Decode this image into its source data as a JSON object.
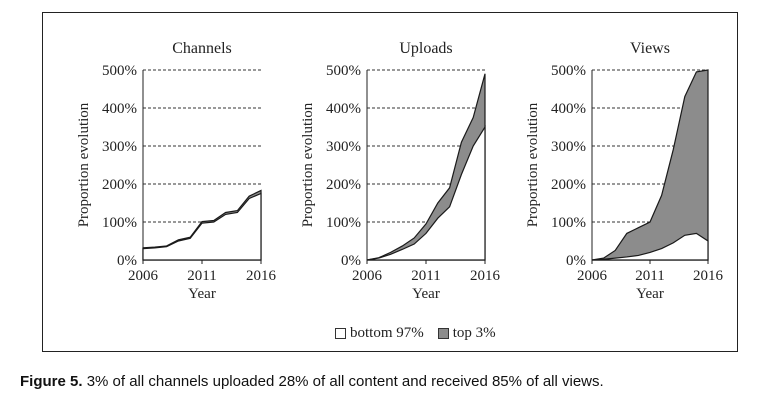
{
  "caption": {
    "label": "Figure 5.",
    "text": "3% of all channels uploaded 28% of all content and received 85% of all views."
  },
  "legend": {
    "bottom": "bottom 97%",
    "top": "top 3%"
  },
  "colors": {
    "top_fill": "#8c8c8c",
    "bottom_fill": "#ffffff",
    "line": "#1a1a1a",
    "grid": "#333333"
  },
  "chart_data": [
    {
      "type": "area",
      "title": "Channels",
      "xlabel": "Year",
      "ylabel": "Proportion evolution",
      "x": [
        2006,
        2007,
        2008,
        2009,
        2010,
        2011,
        2012,
        2013,
        2014,
        2015,
        2016
      ],
      "xticks": [
        2006,
        2011,
        2016
      ],
      "yticks": [
        "0%",
        "100%",
        "200%",
        "300%",
        "400%",
        "500%"
      ],
      "ylim": [
        0,
        500
      ],
      "series": [
        {
          "name": "bottom 97%",
          "values": [
            30,
            32,
            35,
            50,
            57,
            97,
            100,
            120,
            125,
            162,
            175
          ]
        },
        {
          "name": "top 3%",
          "values": [
            32,
            34,
            37,
            53,
            60,
            101,
            104,
            125,
            130,
            168,
            183
          ]
        }
      ]
    },
    {
      "type": "area",
      "title": "Uploads",
      "xlabel": "Year",
      "ylabel": "Proportion evolution",
      "x": [
        2006,
        2007,
        2008,
        2009,
        2010,
        2011,
        2012,
        2013,
        2014,
        2015,
        2016
      ],
      "xticks": [
        2006,
        2011,
        2016
      ],
      "yticks": [
        "0%",
        "100%",
        "200%",
        "300%",
        "400%",
        "500%"
      ],
      "ylim": [
        0,
        500
      ],
      "series": [
        {
          "name": "bottom 97%",
          "values": [
            0,
            5,
            15,
            28,
            42,
            70,
            110,
            140,
            225,
            300,
            350
          ]
        },
        {
          "name": "top 3%",
          "values": [
            0,
            6,
            20,
            37,
            58,
            95,
            150,
            190,
            310,
            375,
            490
          ]
        }
      ]
    },
    {
      "type": "area",
      "title": "Views",
      "xlabel": "Year",
      "ylabel": "Proportion evolution",
      "x": [
        2006,
        2007,
        2008,
        2009,
        2010,
        2011,
        2012,
        2013,
        2014,
        2015,
        2016
      ],
      "xticks": [
        2006,
        2011,
        2016
      ],
      "yticks": [
        "0%",
        "100%",
        "200%",
        "300%",
        "400%",
        "500%"
      ],
      "ylim": [
        0,
        500
      ],
      "series": [
        {
          "name": "bottom 97%",
          "values": [
            0,
            2,
            5,
            8,
            12,
            20,
            30,
            45,
            65,
            70,
            50
          ]
        },
        {
          "name": "top 3%",
          "values": [
            0,
            5,
            25,
            70,
            85,
            100,
            170,
            290,
            430,
            495,
            500
          ]
        }
      ]
    }
  ]
}
